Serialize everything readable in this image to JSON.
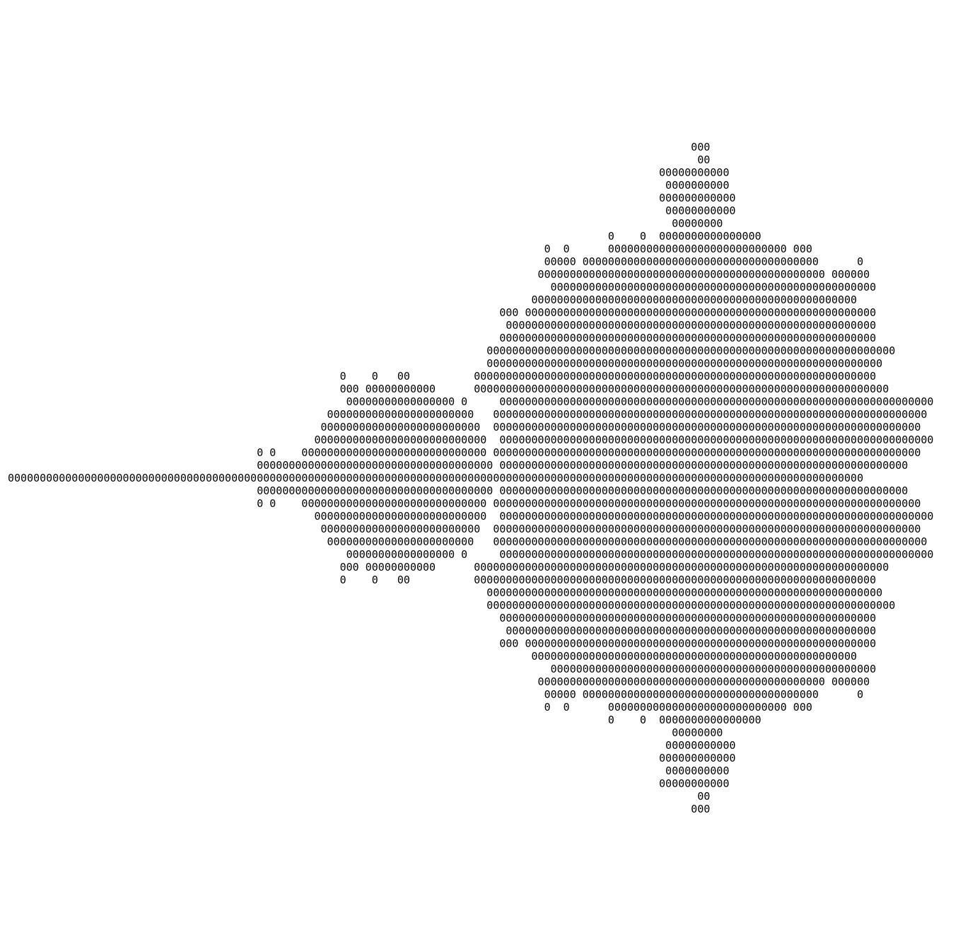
{
  "art": {
    "char_color": "#000000",
    "background": "#ffffff",
    "lines": [
      "                                                                                                           000",
      "                                                                                                            00",
      "                                                                                                      00000000000",
      "                                                                                                       0000000000",
      "                                                                                                      000000000000",
      "                                                                                                       00000000000",
      "                                                                                                        00000000",
      "                                                                                              0    0  0000000000000000",
      "                                                                                    0  0      0000000000000000000000000000 000",
      "                                                                                    00000 0000000000000000000000000000000000000      0",
      "                                                                                   000000000000000000000000000000000000000000000 000000",
      "                                                                                     000000000000000000000000000000000000000000000000000",
      "                                                                                  000000000000000000000000000000000000000000000000000",
      "                                                                             000 0000000000000000000000000000000000000000000000000000000",
      "                                                                              0000000000000000000000000000000000000000000000000000000000",
      "                                                                             00000000000000000000000000000000000000000000000000000000000",
      "                                                                           0000000000000000000000000000000000000000000000000000000000000000",
      "                                                                           00000000000000000000000000000000000000000000000000000000000000",
      "                                                    0    0   00          000000000000000000000000000000000000000000000000000000000000000",
      "                                                    000 00000000000      00000000000000000000000000000000000000000000000000000000000000000",
      "                                                     00000000000000000 0     00000000000000000000000000000000000000000000000000000000000000000000",
      "                                                  00000000000000000000000   00000000000000000000000000000000000000000000000000000000000000000000",
      "                                                 0000000000000000000000000  0000000000000000000000000000000000000000000000000000000000000000000",
      "                                                000000000000000000000000000  00000000000000000000000000000000000000000000000000000000000000000000",
      "                                       0 0    00000000000000000000000000000 0000000000000000000000000000000000000000000000000000000000000000000",
      "                                       0000000000000000000000000000000000000 0000000000000000000000000000000000000000000000000000000000000000",
      "00000000000000000000000000000000000000000000000000000000000000000000000000000000000000000000000000000000000000000000000000000000000000",
      "                                       0000000000000000000000000000000000000 0000000000000000000000000000000000000000000000000000000000000000",
      "                                       0 0    00000000000000000000000000000 0000000000000000000000000000000000000000000000000000000000000000000",
      "                                                000000000000000000000000000  00000000000000000000000000000000000000000000000000000000000000000000",
      "                                                 0000000000000000000000000  0000000000000000000000000000000000000000000000000000000000000000000",
      "                                                  00000000000000000000000   00000000000000000000000000000000000000000000000000000000000000000000",
      "                                                     00000000000000000 0     00000000000000000000000000000000000000000000000000000000000000000000",
      "                                                    000 00000000000      00000000000000000000000000000000000000000000000000000000000000000",
      "                                                    0    0   00          000000000000000000000000000000000000000000000000000000000000000",
      "                                                                           00000000000000000000000000000000000000000000000000000000000000",
      "                                                                           0000000000000000000000000000000000000000000000000000000000000000",
      "                                                                             00000000000000000000000000000000000000000000000000000000000",
      "                                                                              0000000000000000000000000000000000000000000000000000000000",
      "                                                                             000 0000000000000000000000000000000000000000000000000000000",
      "                                                                                  000000000000000000000000000000000000000000000000000",
      "                                                                                     000000000000000000000000000000000000000000000000000",
      "                                                                                   000000000000000000000000000000000000000000000 000000",
      "                                                                                    00000 0000000000000000000000000000000000000      0",
      "                                                                                    0  0      0000000000000000000000000000 000",
      "                                                                                              0    0  0000000000000000",
      "                                                                                                        00000000",
      "                                                                                                       00000000000",
      "                                                                                                      000000000000",
      "                                                                                                       0000000000",
      "                                                                                                      00000000000",
      "                                                                                                            00",
      "                                                                                                           000"
    ]
  }
}
